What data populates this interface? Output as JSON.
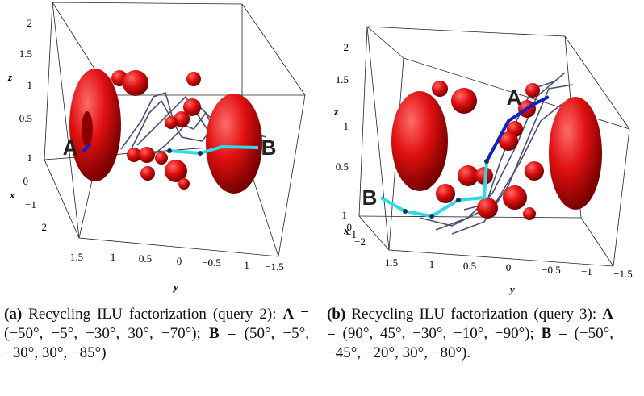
{
  "panels": [
    {
      "z_label": "z",
      "x_label": "x",
      "y_label": "y",
      "z_ticks": [
        "2",
        "1.5",
        "1",
        "0.5"
      ],
      "x_ticks": [
        "1",
        "0",
        "−1",
        "−2"
      ],
      "y_ticks": [
        "1.5",
        "1",
        "0.5",
        "0",
        "−0.5",
        "−1",
        "−1.5"
      ],
      "point_a": "A",
      "point_b": "B",
      "caption": {
        "label": "(a)",
        "text": "Recycling ILU factorization (query 2):",
        "a_name": "A",
        "a_value": "= (−50°, −5°, −30°, 30°, −70°);",
        "b_name": "B",
        "b_value": "= (50°, −5°, −30°, 30°, −85°)"
      }
    },
    {
      "z_label": "z",
      "x_label": "x",
      "y_label": "y",
      "z_ticks": [
        "2",
        "1.5",
        "1",
        "0.5"
      ],
      "x_ticks": [
        "1",
        "0",
        "−1",
        "−2"
      ],
      "y_ticks": [
        "1.5",
        "1",
        "0.5",
        "0",
        "−0.5",
        "−1",
        "−1.5"
      ],
      "point_a": "A",
      "point_b": "B",
      "caption": {
        "label": "(b)",
        "text": "Recycling ILU factorization (query 3):",
        "a_name": "A",
        "a_value": "= (90°, 45°, −30°, −10°, −90°);",
        "b_name": "B",
        "b_value": "= (−50°, −45°, −20°, 30°, −80°)."
      }
    }
  ]
}
